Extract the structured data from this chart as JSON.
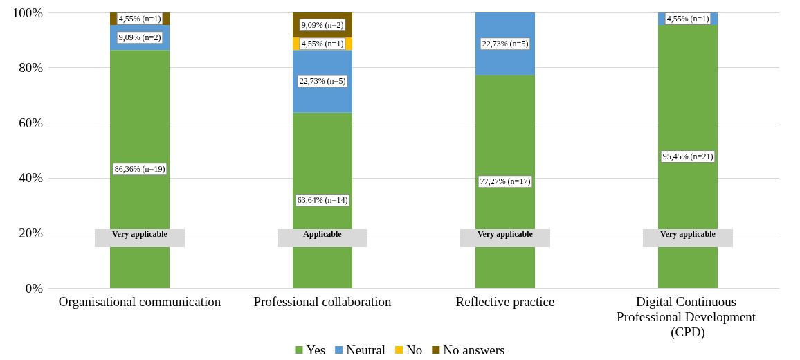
{
  "chart_data": {
    "type": "bar",
    "stacked": true,
    "categories": [
      "Organisational communication",
      "Professional collaboration",
      "Reflective practice",
      "Digital Continuous Professional Development (CPD)"
    ],
    "series": [
      {
        "name": "Yes",
        "color": "#70ad47",
        "values": [
          86.36,
          63.64,
          77.27,
          95.45
        ],
        "value_labels": [
          "86,36% (n=19)",
          "63,64% (n=14)",
          "77,27% (n=17)",
          "95,45% (n=21)"
        ]
      },
      {
        "name": "Neutral",
        "color": "#5b9bd5",
        "values": [
          9.09,
          22.73,
          22.73,
          4.55
        ],
        "value_labels": [
          "9,09% (n=2)",
          "22,73% (n=5)",
          "22,73% (n=5)",
          "4,55% (n=1)"
        ]
      },
      {
        "name": "No",
        "color": "#ffc000",
        "values": [
          null,
          4.55,
          null,
          null
        ],
        "value_labels": [
          null,
          "4,55% (n=1)",
          null,
          null
        ]
      },
      {
        "name": "No answers",
        "color": "#7f6000",
        "values": [
          4.55,
          9.09,
          null,
          null
        ],
        "value_labels": [
          "4,55% (n=1)",
          "9,09% (n=2)",
          null,
          null
        ]
      }
    ],
    "ylim": [
      0,
      100
    ],
    "yticks": [
      {
        "value": 0,
        "label": "0%"
      },
      {
        "value": 20,
        "label": "20%"
      },
      {
        "value": 40,
        "label": "40%"
      },
      {
        "value": 60,
        "label": "60%"
      },
      {
        "value": 80,
        "label": "80%"
      },
      {
        "value": 100,
        "label": "100%"
      }
    ],
    "grid": "y",
    "legend": "bottom",
    "annotations": [
      "Very applicable",
      "Applicable",
      "Very applicable",
      "Very applicable"
    ]
  }
}
